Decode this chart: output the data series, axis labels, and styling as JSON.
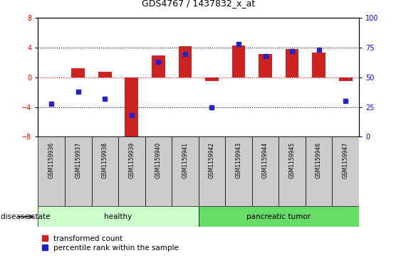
{
  "title": "GDS4767 / 1437832_x_at",
  "samples": [
    "GSM1159936",
    "GSM1159937",
    "GSM1159938",
    "GSM1159939",
    "GSM1159940",
    "GSM1159941",
    "GSM1159942",
    "GSM1159943",
    "GSM1159944",
    "GSM1159945",
    "GSM1159946",
    "GSM1159947"
  ],
  "bar_values": [
    0.0,
    1.2,
    0.8,
    -8.5,
    3.0,
    4.2,
    -0.5,
    4.3,
    3.2,
    3.8,
    3.3,
    -0.5
  ],
  "dot_values_pct": [
    28,
    38,
    32,
    18,
    63,
    70,
    25,
    78,
    68,
    72,
    73,
    30
  ],
  "bar_color": "#cc2222",
  "dot_color": "#2222cc",
  "ylim": [
    -8,
    8
  ],
  "y2lim": [
    0,
    100
  ],
  "yticks": [
    -8,
    -4,
    0,
    4,
    8
  ],
  "y2ticks": [
    0,
    25,
    50,
    75,
    100
  ],
  "hlines_black": [
    4,
    -4
  ],
  "hline_red": 0,
  "healthy_count": 6,
  "tumor_count": 6,
  "healthy_label": "healthy",
  "tumor_label": "pancreatic tumor",
  "disease_state_label": "disease state",
  "legend_bar": "transformed count",
  "legend_dot": "percentile rank within the sample",
  "healthy_color": "#ccffcc",
  "tumor_color": "#66dd66",
  "bar_width": 0.5,
  "bg_color": "#ffffff",
  "tick_label_area_color": "#cccccc",
  "title_fontsize": 9,
  "axis_fontsize": 7,
  "label_fontsize": 7.5
}
